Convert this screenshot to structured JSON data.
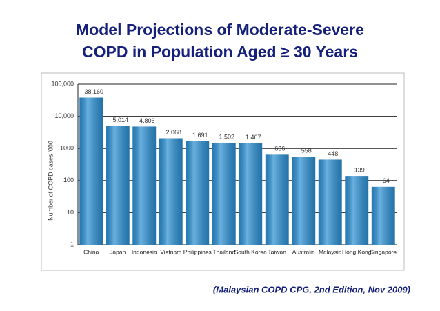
{
  "chart_data": {
    "type": "bar",
    "title": [
      "Model Projections of Moderate-Severe",
      "COPD in Population Aged ≥ 30 Years"
    ],
    "y_label": "Number of COPD cases '000",
    "categories": [
      "China",
      "Japan",
      "Indonesia",
      "Vietnam",
      "Philippines",
      "Thailand",
      "South Korea",
      "Taiwan",
      "Australia",
      "Malaysia",
      "Hong Kong",
      "Singapore"
    ],
    "values": [
      38160,
      5014,
      4806,
      2068,
      1691,
      1502,
      1467,
      636,
      558,
      448,
      139,
      64
    ],
    "value_labels": [
      "38,160",
      "5,014",
      "4,806",
      "2,068",
      "1,691",
      "1,502",
      "1,467",
      "636",
      "558",
      "448",
      "139",
      "64"
    ],
    "color": "#2b8fd3",
    "log_scale": true,
    "ylim": [
      1,
      100000
    ],
    "yticks": [
      1,
      10,
      100,
      1000,
      {
        "value": 10000,
        "label": "10,000"
      },
      {
        "value": 100000,
        "label": "100,000"
      }
    ],
    "grid": true,
    "source": "(Malaysian COPD CPG, 2nd Edition, Nov 2009)"
  }
}
